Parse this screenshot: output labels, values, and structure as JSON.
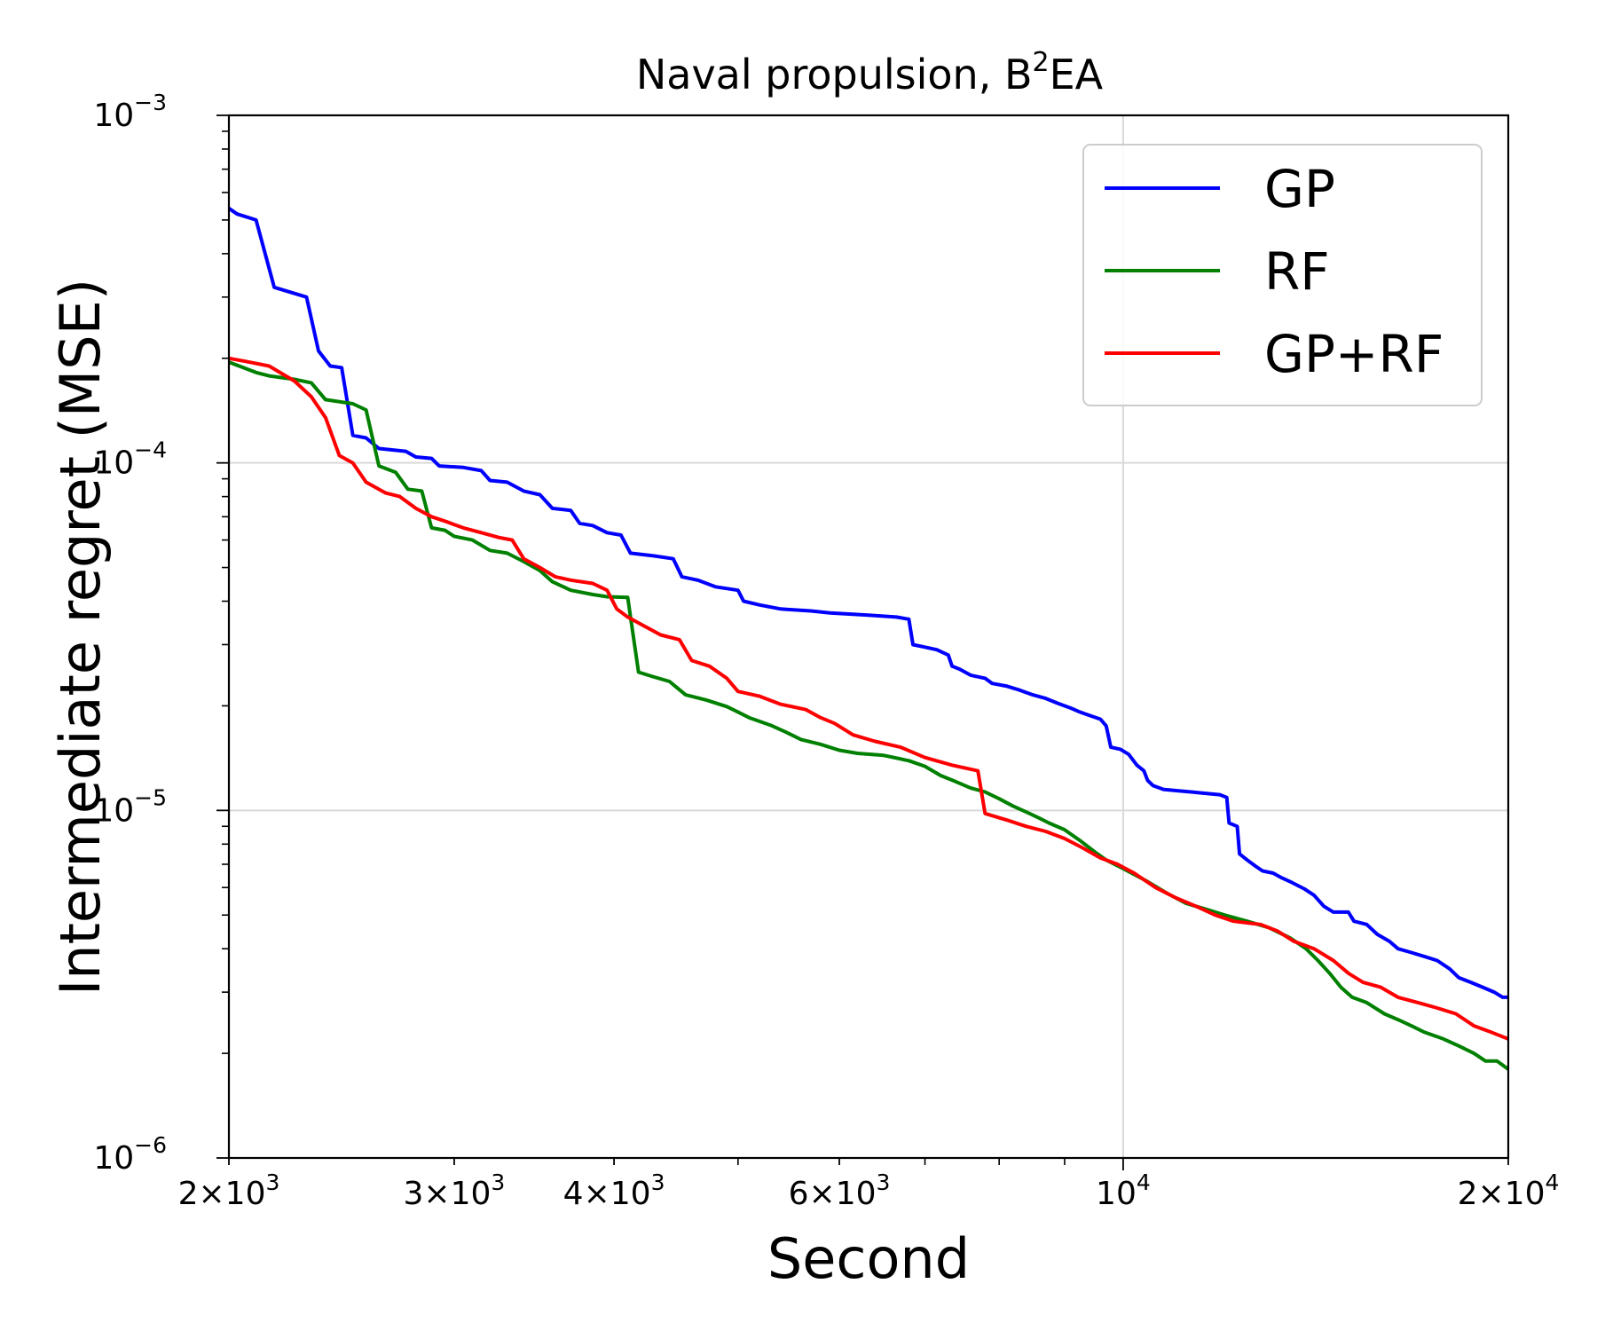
{
  "chart_data": {
    "type": "line",
    "title": "Naval propulsion, B²EA",
    "title_base": "Naval propulsion, B",
    "title_sup": "2",
    "title_tail": "EA",
    "xlabel": "Second",
    "ylabel": "Intermediate regret (MSE)",
    "xscale": "log",
    "yscale": "log",
    "xlim": [
      2000,
      20000
    ],
    "ylim": [
      1e-06,
      0.001
    ],
    "grid": true,
    "legend_position": "top-right",
    "x_ticks": [
      {
        "value": 2000,
        "mantissa": "2",
        "exp": "3"
      },
      {
        "value": 3000,
        "mantissa": "3",
        "exp": "3"
      },
      {
        "value": 4000,
        "mantissa": "4",
        "exp": "3"
      },
      {
        "value": 6000,
        "mantissa": "6",
        "exp": "3"
      },
      {
        "value": 10000,
        "mantissa": "",
        "exp": "4"
      },
      {
        "value": 20000,
        "mantissa": "2",
        "exp": "4"
      }
    ],
    "y_ticks": [
      {
        "value": 0.001,
        "exp": "−3"
      },
      {
        "value": 0.0001,
        "exp": "−4"
      },
      {
        "value": 1e-05,
        "exp": "−5"
      },
      {
        "value": 1e-06,
        "exp": "−6"
      }
    ],
    "series": [
      {
        "name": "GP",
        "color": "#0000ff",
        "points": [
          [
            2000,
            0.00054
          ],
          [
            2030,
            0.00052
          ],
          [
            2100,
            0.0005
          ],
          [
            2170,
            0.00032
          ],
          [
            2300,
            0.0003
          ],
          [
            2350,
            0.00021
          ],
          [
            2400,
            0.00019
          ],
          [
            2450,
            0.000188
          ],
          [
            2500,
            0.00012
          ],
          [
            2560,
            0.000118
          ],
          [
            2620,
            0.00011
          ],
          [
            2750,
            0.000108
          ],
          [
            2800,
            0.000104
          ],
          [
            2880,
            0.000103
          ],
          [
            2920,
            9.8e-05
          ],
          [
            3050,
            9.7e-05
          ],
          [
            3150,
            9.5e-05
          ],
          [
            3200,
            8.9e-05
          ],
          [
            3300,
            8.8e-05
          ],
          [
            3400,
            8.3e-05
          ],
          [
            3500,
            8.1e-05
          ],
          [
            3580,
            7.4e-05
          ],
          [
            3700,
            7.3e-05
          ],
          [
            3760,
            6.7e-05
          ],
          [
            3850,
            6.6e-05
          ],
          [
            3950,
            6.3e-05
          ],
          [
            4050,
            6.2e-05
          ],
          [
            4120,
            5.5e-05
          ],
          [
            4300,
            5.4e-05
          ],
          [
            4450,
            5.3e-05
          ],
          [
            4520,
            4.7e-05
          ],
          [
            4650,
            4.6e-05
          ],
          [
            4800,
            4.4e-05
          ],
          [
            5000,
            4.3e-05
          ],
          [
            5050,
            4e-05
          ],
          [
            5200,
            3.9e-05
          ],
          [
            5400,
            3.8e-05
          ],
          [
            5700,
            3.75e-05
          ],
          [
            5900,
            3.7e-05
          ],
          [
            6300,
            3.65e-05
          ],
          [
            6650,
            3.6e-05
          ],
          [
            6800,
            3.55e-05
          ],
          [
            6850,
            3e-05
          ],
          [
            7000,
            2.95e-05
          ],
          [
            7150,
            2.9e-05
          ],
          [
            7300,
            2.8e-05
          ],
          [
            7350,
            2.6e-05
          ],
          [
            7450,
            2.55e-05
          ],
          [
            7600,
            2.45e-05
          ],
          [
            7800,
            2.4e-05
          ],
          [
            7900,
            2.32e-05
          ],
          [
            8100,
            2.28e-05
          ],
          [
            8300,
            2.22e-05
          ],
          [
            8500,
            2.15e-05
          ],
          [
            8700,
            2.1e-05
          ],
          [
            8900,
            2.03e-05
          ],
          [
            9100,
            1.97e-05
          ],
          [
            9250,
            1.92e-05
          ],
          [
            9400,
            1.88e-05
          ],
          [
            9600,
            1.83e-05
          ],
          [
            9700,
            1.75e-05
          ],
          [
            9780,
            1.52e-05
          ],
          [
            9950,
            1.5e-05
          ],
          [
            10100,
            1.45e-05
          ],
          [
            10250,
            1.35e-05
          ],
          [
            10380,
            1.3e-05
          ],
          [
            10450,
            1.22e-05
          ],
          [
            10550,
            1.18e-05
          ],
          [
            10750,
            1.15e-05
          ],
          [
            11000,
            1.14e-05
          ],
          [
            11300,
            1.13e-05
          ],
          [
            11600,
            1.12e-05
          ],
          [
            11900,
            1.11e-05
          ],
          [
            12050,
            1.09e-05
          ],
          [
            12100,
            9.2e-06
          ],
          [
            12280,
            9e-06
          ],
          [
            12330,
            7.5e-06
          ],
          [
            12500,
            7.2e-06
          ],
          [
            12700,
            6.9e-06
          ],
          [
            12850,
            6.7e-06
          ],
          [
            13100,
            6.6e-06
          ],
          [
            13300,
            6.4e-06
          ],
          [
            13550,
            6.2e-06
          ],
          [
            13850,
            5.95e-06
          ],
          [
            14100,
            5.7e-06
          ],
          [
            14350,
            5.3e-06
          ],
          [
            14600,
            5.1e-06
          ],
          [
            15000,
            5.1e-06
          ],
          [
            15150,
            4.8e-06
          ],
          [
            15500,
            4.7e-06
          ],
          [
            15800,
            4.4e-06
          ],
          [
            16150,
            4.2e-06
          ],
          [
            16400,
            4e-06
          ],
          [
            16800,
            3.9e-06
          ],
          [
            17200,
            3.8e-06
          ],
          [
            17600,
            3.7e-06
          ],
          [
            18000,
            3.5e-06
          ],
          [
            18300,
            3.3e-06
          ],
          [
            18700,
            3.2e-06
          ],
          [
            19100,
            3.1e-06
          ],
          [
            19500,
            3e-06
          ],
          [
            19800,
            2.9e-06
          ],
          [
            20000,
            2.9e-06
          ]
        ]
      },
      {
        "name": "RF",
        "color": "#008000",
        "points": [
          [
            2000,
            0.000195
          ],
          [
            2100,
            0.000182
          ],
          [
            2150,
            0.000178
          ],
          [
            2250,
            0.000174
          ],
          [
            2320,
            0.00017
          ],
          [
            2380,
            0.000152
          ],
          [
            2500,
            0.000148
          ],
          [
            2560,
            0.000142
          ],
          [
            2620,
            9.8e-05
          ],
          [
            2700,
            9.4e-05
          ],
          [
            2760,
            8.4e-05
          ],
          [
            2830,
            8.3e-05
          ],
          [
            2880,
            6.5e-05
          ],
          [
            2950,
            6.4e-05
          ],
          [
            3000,
            6.15e-05
          ],
          [
            3100,
            6e-05
          ],
          [
            3200,
            5.6e-05
          ],
          [
            3300,
            5.5e-05
          ],
          [
            3400,
            5.2e-05
          ],
          [
            3500,
            4.9e-05
          ],
          [
            3580,
            4.55e-05
          ],
          [
            3700,
            4.3e-05
          ],
          [
            3850,
            4.18e-05
          ],
          [
            3950,
            4.12e-05
          ],
          [
            4100,
            4.1e-05
          ],
          [
            4180,
            2.5e-05
          ],
          [
            4300,
            2.42e-05
          ],
          [
            4420,
            2.35e-05
          ],
          [
            4550,
            2.15e-05
          ],
          [
            4720,
            2.08e-05
          ],
          [
            4900,
            1.99e-05
          ],
          [
            5000,
            1.92e-05
          ],
          [
            5100,
            1.85e-05
          ],
          [
            5300,
            1.76e-05
          ],
          [
            5450,
            1.68e-05
          ],
          [
            5600,
            1.6e-05
          ],
          [
            5800,
            1.55e-05
          ],
          [
            6000,
            1.49e-05
          ],
          [
            6200,
            1.46e-05
          ],
          [
            6500,
            1.44e-05
          ],
          [
            6800,
            1.39e-05
          ],
          [
            7000,
            1.34e-05
          ],
          [
            7200,
            1.26e-05
          ],
          [
            7400,
            1.21e-05
          ],
          [
            7600,
            1.16e-05
          ],
          [
            7800,
            1.13e-05
          ],
          [
            8000,
            1.08e-05
          ],
          [
            8200,
            1.03e-05
          ],
          [
            8450,
            9.8e-06
          ],
          [
            8600,
            9.5e-06
          ],
          [
            8750,
            9.2e-06
          ],
          [
            9000,
            8.8e-06
          ],
          [
            9250,
            8.2e-06
          ],
          [
            9500,
            7.6e-06
          ],
          [
            9700,
            7.2e-06
          ],
          [
            10000,
            6.8e-06
          ],
          [
            10400,
            6.3e-06
          ],
          [
            10800,
            5.8e-06
          ],
          [
            11200,
            5.4e-06
          ],
          [
            11600,
            5.2e-06
          ],
          [
            12000,
            5e-06
          ],
          [
            12500,
            4.8e-06
          ],
          [
            13000,
            4.6e-06
          ],
          [
            13500,
            4.3e-06
          ],
          [
            13900,
            4e-06
          ],
          [
            14200,
            3.7e-06
          ],
          [
            14500,
            3.4e-06
          ],
          [
            14800,
            3.1e-06
          ],
          [
            15100,
            2.9e-06
          ],
          [
            15500,
            2.8e-06
          ],
          [
            16000,
            2.6e-06
          ],
          [
            16400,
            2.5e-06
          ],
          [
            16800,
            2.4e-06
          ],
          [
            17200,
            2.3e-06
          ],
          [
            17800,
            2.2e-06
          ],
          [
            18300,
            2.1e-06
          ],
          [
            18800,
            2e-06
          ],
          [
            19200,
            1.9e-06
          ],
          [
            19600,
            1.9e-06
          ],
          [
            20000,
            1.8e-06
          ]
        ]
      },
      {
        "name": "GP+RF",
        "color": "#ff0000",
        "points": [
          [
            2000,
            0.0002
          ],
          [
            2060,
            0.000196
          ],
          [
            2150,
            0.00019
          ],
          [
            2250,
            0.000172
          ],
          [
            2320,
            0.000155
          ],
          [
            2380,
            0.000135
          ],
          [
            2440,
            0.000105
          ],
          [
            2500,
            0.0001
          ],
          [
            2560,
            8.8e-05
          ],
          [
            2650,
            8.2e-05
          ],
          [
            2720,
            8e-05
          ],
          [
            2800,
            7.4e-05
          ],
          [
            2880,
            7e-05
          ],
          [
            2950,
            6.8e-05
          ],
          [
            3050,
            6.5e-05
          ],
          [
            3150,
            6.3e-05
          ],
          [
            3250,
            6.1e-05
          ],
          [
            3330,
            6e-05
          ],
          [
            3400,
            5.3e-05
          ],
          [
            3500,
            5e-05
          ],
          [
            3600,
            4.7e-05
          ],
          [
            3700,
            4.6e-05
          ],
          [
            3850,
            4.5e-05
          ],
          [
            3950,
            4.3e-05
          ],
          [
            4020,
            3.8e-05
          ],
          [
            4100,
            3.6e-05
          ],
          [
            4220,
            3.4e-05
          ],
          [
            4350,
            3.2e-05
          ],
          [
            4500,
            3.1e-05
          ],
          [
            4600,
            2.7e-05
          ],
          [
            4750,
            2.6e-05
          ],
          [
            4900,
            2.4e-05
          ],
          [
            5000,
            2.2e-05
          ],
          [
            5200,
            2.13e-05
          ],
          [
            5400,
            2.02e-05
          ],
          [
            5650,
            1.95e-05
          ],
          [
            5800,
            1.85e-05
          ],
          [
            5950,
            1.78e-05
          ],
          [
            6150,
            1.65e-05
          ],
          [
            6400,
            1.58e-05
          ],
          [
            6700,
            1.52e-05
          ],
          [
            7000,
            1.42e-05
          ],
          [
            7350,
            1.35e-05
          ],
          [
            7700,
            1.3e-05
          ],
          [
            7800,
            9.8e-06
          ],
          [
            8100,
            9.4e-06
          ],
          [
            8400,
            9e-06
          ],
          [
            8700,
            8.7e-06
          ],
          [
            9000,
            8.3e-06
          ],
          [
            9300,
            7.8e-06
          ],
          [
            9600,
            7.3e-06
          ],
          [
            9900,
            7e-06
          ],
          [
            10200,
            6.6e-06
          ],
          [
            10600,
            6e-06
          ],
          [
            11000,
            5.6e-06
          ],
          [
            11400,
            5.3e-06
          ],
          [
            11800,
            5e-06
          ],
          [
            12200,
            4.8e-06
          ],
          [
            12800,
            4.7e-06
          ],
          [
            13200,
            4.5e-06
          ],
          [
            13600,
            4.2e-06
          ],
          [
            14100,
            4e-06
          ],
          [
            14600,
            3.7e-06
          ],
          [
            15000,
            3.4e-06
          ],
          [
            15400,
            3.2e-06
          ],
          [
            15900,
            3.1e-06
          ],
          [
            16400,
            2.9e-06
          ],
          [
            17000,
            2.8e-06
          ],
          [
            17600,
            2.7e-06
          ],
          [
            18200,
            2.6e-06
          ],
          [
            18800,
            2.4e-06
          ],
          [
            19400,
            2.3e-06
          ],
          [
            20000,
            2.2e-06
          ]
        ]
      }
    ]
  }
}
